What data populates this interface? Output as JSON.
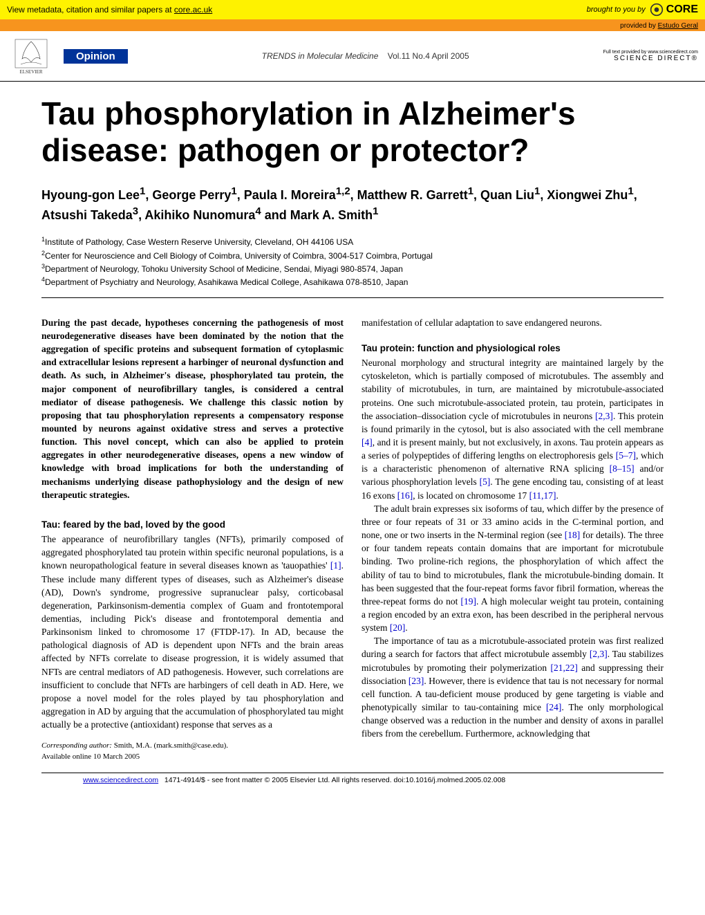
{
  "core_banner": {
    "left_text": "View metadata, citation and similar papers at ",
    "left_link": "core.ac.uk",
    "brought_by": "brought to you by",
    "logo_text": "CORE",
    "provided_by_prefix": "provided by ",
    "provided_by_link": "Estudo Geral"
  },
  "header": {
    "elsevier_label": "ELSEVIER",
    "opinion_label": "Opinion",
    "journal_name": "TRENDS in Molecular Medicine",
    "vol_issue": "Vol.11 No.4 April 2005",
    "fulltext_line": "Full text provided by www.sciencedirect.com",
    "sciencedirect": "SCIENCE DIRECT®"
  },
  "article": {
    "title": "Tau phosphorylation in Alzheimer's disease: pathogen or protector?",
    "authors_html": "Hyoung-gon Lee<sup>1</sup>, George Perry<sup>1</sup>, Paula I. Moreira<sup>1,2</sup>, Matthew R. Garrett<sup>1</sup>, Quan Liu<sup>1</sup>, Xiongwei Zhu<sup>1</sup>, Atsushi Takeda<sup>3</sup>, Akihiko Nunomura<sup>4</sup> and Mark A. Smith<sup>1</sup>",
    "affiliations": [
      "Institute of Pathology, Case Western Reserve University, Cleveland, OH 44106 USA",
      "Center for Neuroscience and Cell Biology of Coimbra, University of Coimbra, 3004-517 Coimbra, Portugal",
      "Department of Neurology, Tohoku University School of Medicine, Sendai, Miyagi 980-8574, Japan",
      "Department of Psychiatry and Neurology, Asahikawa Medical College, Asahikawa 078-8510, Japan"
    ]
  },
  "abstract": "During the past decade, hypotheses concerning the pathogenesis of most neurodegenerative diseases have been dominated by the notion that the aggregation of specific proteins and subsequent formation of cytoplasmic and extracellular lesions represent a harbinger of neuronal dysfunction and death. As such, in Alzheimer's disease, phosphorylated tau protein, the major component of neurofibrillary tangles, is considered a central mediator of disease pathogenesis. We challenge this classic notion by proposing that tau phosphorylation represents a compensatory response mounted by neurons against oxidative stress and serves a protective function. This novel concept, which can also be applied to protein aggregates in other neurodegenerative diseases, opens a new window of knowledge with broad implications for both the understanding of mechanisms underlying disease pathophysiology and the design of new therapeutic strategies.",
  "sections": {
    "s1_heading": "Tau: feared by the bad, loved by the good",
    "s1_p1a": "The appearance of neurofibrillary tangles (NFTs), primarily composed of aggregated phosphorylated tau protein within specific neuronal populations, is a known neuropathological feature in several diseases known as 'tauopathies' ",
    "s1_ref1": "[1]",
    "s1_p1b": ". These include many different types of diseases, such as Alzheimer's disease (AD), Down's syndrome, progressive supranuclear palsy, corticobasal degeneration, Parkinsonism-dementia complex of Guam and frontotemporal dementias, including Pick's disease and frontotemporal dementia and Parkinsonism linked to chromosome 17 (FTDP-17). In AD, because the pathological diagnosis of AD is dependent upon NFTs and the brain areas affected by NFTs correlate to disease progression, it is widely assumed that NFTs are central mediators of AD pathogenesis. However, such correlations are insufficient to conclude that NFTs are harbingers of cell death in AD. Here, we propose a novel model for the roles played by tau phosphorylation and aggregation in AD by arguing that the accumulation of phosphorylated tau might actually be a protective (antioxidant) response that serves as a",
    "col2_cont": "manifestation of cellular adaptation to save endangered neurons.",
    "s2_heading": "Tau protein: function and physiological roles",
    "s2_p1a": "Neuronal morphology and structural integrity are maintained largely by the cytoskeleton, which is partially composed of microtubules. The assembly and stability of microtubules, in turn, are maintained by microtubule-associated proteins. One such microtubule-associated protein, tau protein, participates in the association–dissociation cycle of microtubules in neurons ",
    "s2_ref1": "[2,3]",
    "s2_p1b": ". This protein is found primarily in the cytosol, but is also associated with the cell membrane ",
    "s2_ref2": "[4]",
    "s2_p1c": ", and it is present mainly, but not exclusively, in axons. Tau protein appears as a series of polypeptides of differing lengths on electrophoresis gels ",
    "s2_ref3": "[5–7]",
    "s2_p1d": ", which is a characteristic phenomenon of alternative RNA splicing ",
    "s2_ref4": "[8–15]",
    "s2_p1e": " and/or various phosphorylation levels ",
    "s2_ref5": "[5]",
    "s2_p1f": ". The gene encoding tau, consisting of at least 16 exons ",
    "s2_ref6": "[16]",
    "s2_p1g": ", is located on chromosome 17 ",
    "s2_ref7": "[11,17]",
    "s2_p1h": ".",
    "s2_p2a": "The adult brain expresses six isoforms of tau, which differ by the presence of three or four repeats of 31 or 33 amino acids in the C-terminal portion, and none, one or two inserts in the N-terminal region (see ",
    "s2_ref8": "[18]",
    "s2_p2b": " for details). The three or four tandem repeats contain domains that are important for microtubule binding. Two proline-rich regions, the phosphorylation of which affect the ability of tau to bind to microtubules, flank the microtubule-binding domain. It has been suggested that the four-repeat forms favor fibril formation, whereas the three-repeat forms do not ",
    "s2_ref9": "[19]",
    "s2_p2c": ". A high molecular weight tau protein, containing a region encoded by an extra exon, has been described in the peripheral nervous system ",
    "s2_ref10": "[20]",
    "s2_p2d": ".",
    "s2_p3a": "The importance of tau as a microtubule-associated protein was first realized during a search for factors that affect microtubule assembly ",
    "s2_ref11": "[2,3]",
    "s2_p3b": ". Tau stabilizes microtubules by promoting their polymerization ",
    "s2_ref12": "[21,22]",
    "s2_p3c": " and suppressing their dissociation ",
    "s2_ref13": "[23]",
    "s2_p3d": ". However, there is evidence that tau is not necessary for normal cell function. A tau-deficient mouse produced by gene targeting is viable and phenotypically similar to tau-containing mice ",
    "s2_ref14": "[24]",
    "s2_p3e": ". The only morphological change observed was a reduction in the number and density of axons in parallel fibers from the cerebellum. Furthermore, acknowledging that"
  },
  "footer": {
    "corresponding_label": "Corresponding author:",
    "corresponding_value": " Smith, M.A. (mark.smith@case.edu).",
    "available": "Available online 10 March 2005",
    "url": "www.sciencedirect.com",
    "copyright": "1471-4914/$ - see front matter © 2005 Elsevier Ltd. All rights reserved. doi:10.1016/j.molmed.2005.02.008"
  },
  "colors": {
    "core_yellow": "#fef200",
    "core_orange": "#f7941e",
    "opinion_blue": "#003399",
    "link_blue": "#0000cc"
  }
}
